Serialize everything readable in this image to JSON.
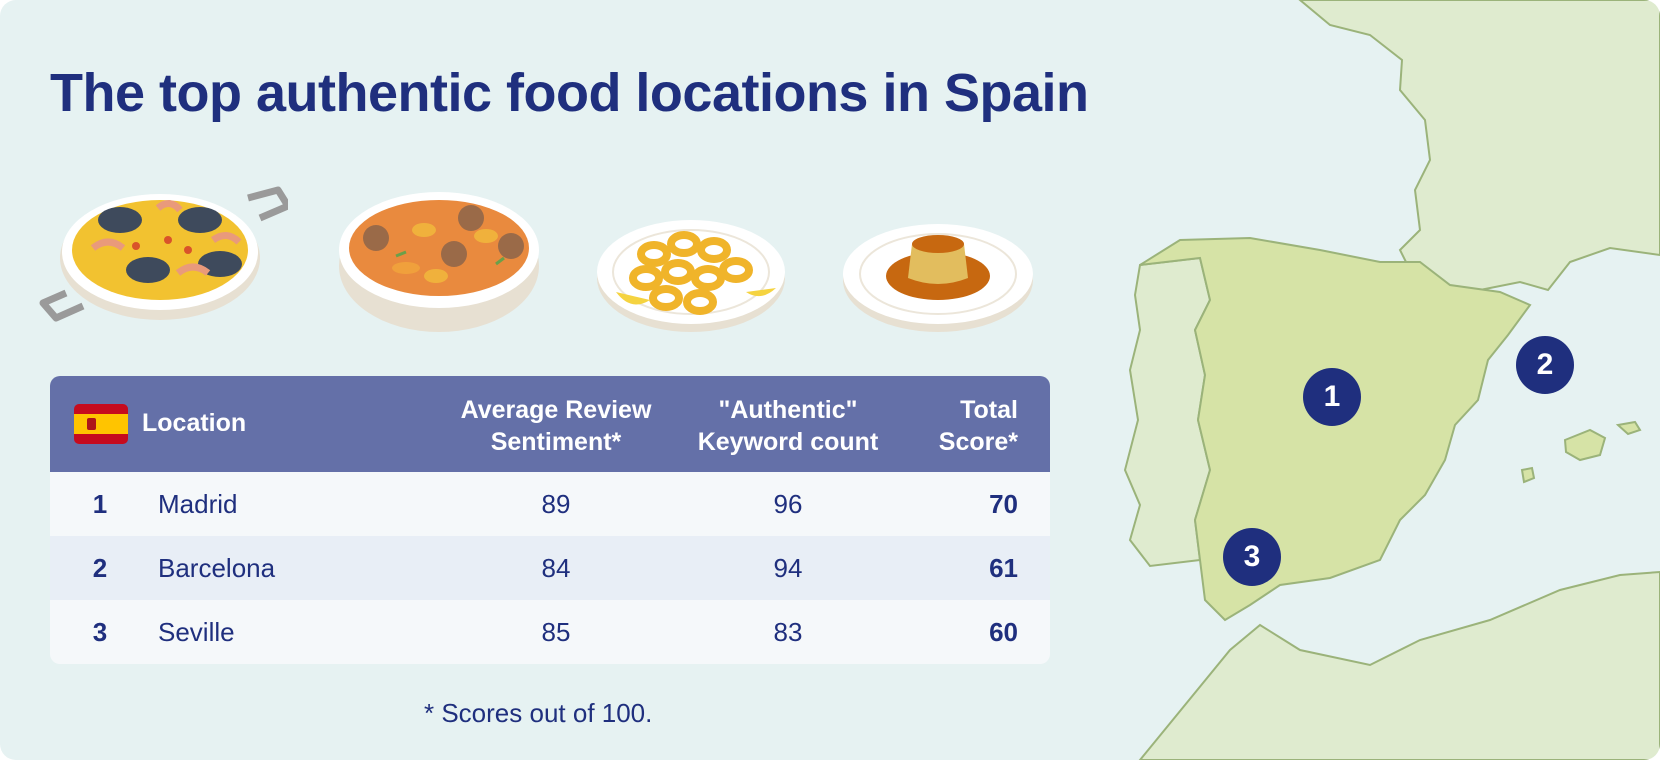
{
  "title": "The top authentic food locations in Spain",
  "dishes": [
    {
      "icon": "paella-icon"
    },
    {
      "icon": "stew-icon"
    },
    {
      "icon": "calamari-icon"
    },
    {
      "icon": "flan-icon"
    }
  ],
  "table": {
    "flag_icon": "spain-flag-icon",
    "headers": {
      "location": "Location",
      "sentiment_1": "Average Review",
      "sentiment_2": "Sentiment*",
      "keyword_1": "\"Authentic\"",
      "keyword_2": "Keyword count",
      "total_1": "Total",
      "total_2": "Score*"
    },
    "rows": [
      {
        "rank": "1",
        "location": "Madrid",
        "sentiment": "89",
        "keywords": "96",
        "total": "70"
      },
      {
        "rank": "2",
        "location": "Barcelona",
        "sentiment": "84",
        "keywords": "94",
        "total": "61"
      },
      {
        "rank": "3",
        "location": "Seville",
        "sentiment": "85",
        "keywords": "83",
        "total": "60"
      }
    ]
  },
  "footnote": "* Scores out of 100.",
  "map": {
    "pins": [
      {
        "label": "1",
        "city": "Madrid"
      },
      {
        "label": "2",
        "city": "Barcelona"
      },
      {
        "label": "3",
        "city": "Seville"
      }
    ]
  },
  "colors": {
    "background": "#e6f2f2",
    "title": "#1f2f7e",
    "header": "#6470a8",
    "spain_land": "#d6e3a6",
    "other_land": "#dfebcf",
    "border": "#9bb37a"
  }
}
